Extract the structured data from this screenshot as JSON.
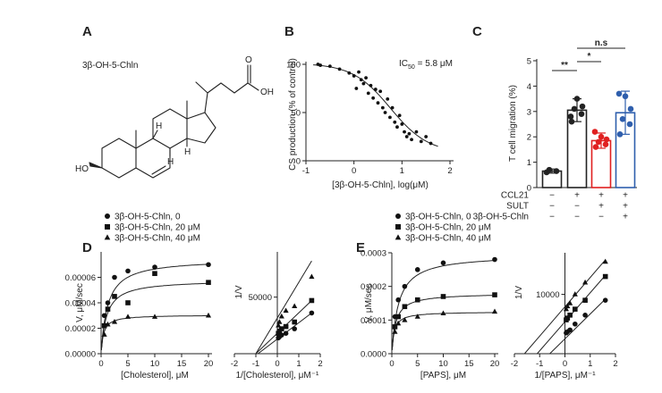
{
  "chart_data": [
    {
      "panel": "A",
      "type": "structure",
      "title": "3β-OH-5-Chln",
      "atom_labels": [
        "HO",
        "OH",
        "O",
        "H",
        "H",
        "H"
      ]
    },
    {
      "panel": "B",
      "type": "scatter",
      "xlabel": "[3β-OH-5-Chln], log(μM)",
      "ylabel": "CS production (% of control)",
      "annotation": "IC50 = 5.8 μM",
      "annotation_prefix": "IC",
      "annotation_sub": "50",
      "annotation_suffix": " = 5.8 μM",
      "xlim": [
        -0.9,
        1.9
      ],
      "ylim": [
        0,
        100
      ],
      "xticks": [
        {
          "v": -1,
          "l": "-1"
        },
        {
          "v": 0,
          "l": "0"
        },
        {
          "v": 1,
          "l": "1"
        },
        {
          "v": 2,
          "l": "2"
        }
      ],
      "yticks": [
        {
          "v": 0,
          "l": "0"
        },
        {
          "v": 50,
          "l": "50"
        },
        {
          "v": 100,
          "l": "100"
        }
      ],
      "points": [
        [
          -0.75,
          100
        ],
        [
          -0.7,
          99
        ],
        [
          -0.5,
          98
        ],
        [
          -0.3,
          95
        ],
        [
          -0.1,
          91
        ],
        [
          0,
          88
        ],
        [
          0.05,
          75
        ],
        [
          0.1,
          92
        ],
        [
          0.15,
          84
        ],
        [
          0.2,
          80
        ],
        [
          0.25,
          86
        ],
        [
          0.3,
          70
        ],
        [
          0.35,
          78
        ],
        [
          0.4,
          65
        ],
        [
          0.45,
          74
        ],
        [
          0.5,
          60
        ],
        [
          0.55,
          72
        ],
        [
          0.6,
          55
        ],
        [
          0.65,
          50
        ],
        [
          0.7,
          64
        ],
        [
          0.75,
          45
        ],
        [
          0.8,
          55
        ],
        [
          0.85,
          40
        ],
        [
          0.9,
          35
        ],
        [
          0.95,
          47
        ],
        [
          1.0,
          38
        ],
        [
          1.05,
          30
        ],
        [
          1.1,
          25
        ],
        [
          1.15,
          28
        ],
        [
          1.2,
          22
        ],
        [
          1.3,
          30
        ],
        [
          1.4,
          20
        ],
        [
          1.5,
          25
        ],
        [
          1.6,
          18
        ]
      ],
      "fit": {
        "model": "four-parameter logistic",
        "top": 101,
        "bottom": 8,
        "logIC50": 0.76,
        "hill": 1.1
      }
    },
    {
      "panel": "C",
      "type": "bar",
      "ylabel": "T cell migration (%)",
      "ylim": [
        0,
        5
      ],
      "yticks": [
        {
          "v": 0,
          "l": "0"
        },
        {
          "v": 1,
          "l": "1"
        },
        {
          "v": 2,
          "l": "2"
        },
        {
          "v": 3,
          "l": "3"
        },
        {
          "v": 4,
          "l": "4"
        },
        {
          "v": 5,
          "l": "5"
        }
      ],
      "groups": [
        {
          "value": 0.65,
          "err": 0.08,
          "color": "#222222",
          "points": [
            0.6,
            0.65,
            0.7
          ]
        },
        {
          "value": 3.05,
          "err": 0.45,
          "color": "#222222",
          "points": [
            2.6,
            2.9,
            3.1,
            3.2,
            3.5,
            2.8
          ]
        },
        {
          "value": 1.85,
          "err": 0.3,
          "color": "#e02020",
          "points": [
            1.6,
            1.7,
            1.8,
            1.9,
            2.0,
            2.2
          ]
        },
        {
          "value": 2.95,
          "err": 0.85,
          "color": "#2f5fad",
          "points": [
            2.1,
            2.5,
            2.7,
            3.1,
            3.6,
            3.7
          ]
        }
      ],
      "condition_labels": [
        "CCL21",
        "SULT",
        "3β-OH-5-Chln"
      ],
      "conditions": [
        [
          "−",
          "+",
          "+",
          "+"
        ],
        [
          "−",
          "−",
          "+",
          "+"
        ],
        [
          "−",
          "−",
          "−",
          "+"
        ]
      ],
      "significance": [
        {
          "from": 0,
          "to": 1,
          "label": "**"
        },
        {
          "from": 1,
          "to": 2,
          "label": "*"
        },
        {
          "from": 1,
          "to": 3,
          "label": "n.s"
        }
      ]
    },
    {
      "panel": "D-left",
      "type": "scatter",
      "xlabel": "[Cholesterol], μM",
      "ylabel": "V, μM/sec",
      "xlim": [
        0,
        20
      ],
      "ylim": [
        0,
        8e-05
      ],
      "xticks": [
        {
          "v": 0,
          "l": "0"
        },
        {
          "v": 5,
          "l": "5"
        },
        {
          "v": 10,
          "l": "10"
        },
        {
          "v": 15,
          "l": "15"
        },
        {
          "v": 20,
          "l": "20"
        }
      ],
      "yticks": [
        {
          "v": 0,
          "l": "0.00000"
        },
        {
          "v": 2e-05,
          "l": "0.00002"
        },
        {
          "v": 4e-05,
          "l": "0.00004"
        },
        {
          "v": 6e-05,
          "l": "0.00006"
        }
      ],
      "legend": [
        "3β-OH-5-Chln, 0",
        "3β-OH-5-Chln, 20 μM",
        "3β-OH-5-Chln, 40 μM"
      ],
      "series": [
        {
          "name": "3β-OH-5-Chln, 0",
          "marker": "circle",
          "vmax": 7.45e-05,
          "km": 1.2,
          "x": [
            0.6,
            1.25,
            2.5,
            5,
            10,
            20
          ],
          "y": [
            3e-05,
            4e-05,
            6e-05,
            6.5e-05,
            6.8e-05,
            7e-05
          ]
        },
        {
          "name": "3β-OH-5-Chln, 20 μM",
          "marker": "square",
          "vmax": 5.8e-05,
          "km": 1.0,
          "x": [
            0.6,
            1.25,
            2.5,
            5,
            10,
            20
          ],
          "y": [
            2.2e-05,
            3.5e-05,
            4.5e-05,
            4e-05,
            6.3e-05,
            5.6e-05
          ]
        },
        {
          "name": "3β-OH-5-Chln, 40 μM",
          "marker": "triangle",
          "vmax": 3.05e-05,
          "km": 0.45,
          "x": [
            0.6,
            1.25,
            2.5,
            5,
            10,
            20
          ],
          "y": [
            1.5e-05,
            2.3e-05,
            2.5e-05,
            2.9e-05,
            2.9e-05,
            3e-05
          ]
        }
      ]
    },
    {
      "panel": "D-right",
      "type": "line",
      "xlabel": "1/[Cholesterol], μM⁻¹",
      "ylabel": "1/V",
      "xlim": [
        -2,
        2
      ],
      "ylim": [
        0,
        90000
      ],
      "xticks": [
        {
          "v": -2,
          "l": "-2"
        },
        {
          "v": -1,
          "l": "-1"
        },
        {
          "v": 0,
          "l": "0"
        },
        {
          "v": 1,
          "l": "1"
        },
        {
          "v": 2,
          "l": "2"
        }
      ],
      "yticks": [
        {
          "v": 50000,
          "l": "50000"
        }
      ],
      "series": [
        {
          "marker": "circle",
          "x": [
            0.05,
            0.1,
            0.2,
            0.4,
            0.8,
            1.6
          ],
          "y": [
            14000,
            15000,
            16500,
            18000,
            22000,
            36000
          ],
          "line": [
            [
              -0.9,
              0
            ],
            [
              1.6,
              36000
            ]
          ]
        },
        {
          "marker": "square",
          "x": [
            0.05,
            0.1,
            0.2,
            0.4,
            0.8,
            1.6
          ],
          "y": [
            18000,
            20000,
            22000,
            24000,
            28000,
            47000
          ],
          "line": [
            [
              -1.0,
              0
            ],
            [
              1.6,
              47000
            ]
          ]
        },
        {
          "marker": "triangle",
          "x": [
            0.05,
            0.1,
            0.2,
            0.4,
            0.8,
            1.6
          ],
          "y": [
            25000,
            28000,
            33000,
            38000,
            42000,
            68000
          ],
          "line": [
            [
              -1.0,
              0
            ],
            [
              1.6,
              82000
            ]
          ]
        }
      ]
    },
    {
      "panel": "E-left",
      "type": "scatter",
      "xlabel": "[PAPS], μM",
      "ylabel": "V, μM/sec",
      "xlim": [
        0,
        20
      ],
      "ylim": [
        0,
        0.0003
      ],
      "xticks": [
        {
          "v": 0,
          "l": "0"
        },
        {
          "v": 5,
          "l": "5"
        },
        {
          "v": 10,
          "l": "10"
        },
        {
          "v": 15,
          "l": "15"
        },
        {
          "v": 20,
          "l": "20"
        }
      ],
      "yticks": [
        {
          "v": 0,
          "l": "0.0000"
        },
        {
          "v": 0.0001,
          "l": "0.0001"
        },
        {
          "v": 0.0002,
          "l": "0.0002"
        },
        {
          "v": 0.0003,
          "l": "0.0003"
        }
      ],
      "legend": [
        "3β-OH-5-Chln, 0",
        "3β-OH-5-Chln, 20 μM",
        "3β-OH-5-Chln, 40 μM"
      ],
      "series": [
        {
          "name": "3β-OH-5-Chln, 0",
          "marker": "circle",
          "vmax": 0.000295,
          "km": 1.3,
          "x": [
            0.6,
            1.25,
            2.5,
            5,
            10,
            20
          ],
          "y": [
            0.00011,
            0.00016,
            0.0002,
            0.00025,
            0.00027,
            0.00028
          ]
        },
        {
          "name": "3β-OH-5-Chln, 20 μM",
          "marker": "square",
          "vmax": 0.00018,
          "km": 0.75,
          "x": [
            0.6,
            1.25,
            2.5,
            5,
            10,
            20
          ],
          "y": [
            8e-05,
            0.00011,
            0.00014,
            0.00016,
            0.00017,
            0.000175
          ]
        },
        {
          "name": "3β-OH-5-Chln, 40 μM",
          "marker": "triangle",
          "vmax": 0.000125,
          "km": 0.45,
          "x": [
            0.6,
            1.25,
            2.5,
            5,
            10,
            20
          ],
          "y": [
            6.5e-05,
            9e-05,
            0.0001,
            0.00011,
            0.00012,
            0.000125
          ]
        }
      ]
    },
    {
      "panel": "E-right",
      "type": "line",
      "xlabel": "1/[PAPS], μM⁻¹",
      "ylabel": "1/V",
      "xlim": [
        -2,
        2
      ],
      "ylim": [
        0,
        17000
      ],
      "xticks": [
        {
          "v": -2,
          "l": "-2"
        },
        {
          "v": -1,
          "l": "-1"
        },
        {
          "v": 0,
          "l": "0"
        },
        {
          "v": 1,
          "l": "1"
        },
        {
          "v": 2,
          "l": "2"
        }
      ],
      "yticks": [
        {
          "v": 10000,
          "l": "10000"
        }
      ],
      "series": [
        {
          "marker": "circle",
          "x": [
            0.05,
            0.1,
            0.2,
            0.4,
            0.8,
            1.6
          ],
          "y": [
            3500,
            3700,
            4000,
            5000,
            6500,
            9000
          ],
          "line": [
            [
              -0.6,
              0
            ],
            [
              1.6,
              9200
            ]
          ]
        },
        {
          "marker": "square",
          "x": [
            0.05,
            0.1,
            0.2,
            0.4,
            0.8,
            1.6
          ],
          "y": [
            5700,
            6000,
            6500,
            7500,
            9000,
            13000
          ],
          "line": [
            [
              -1.1,
              0
            ],
            [
              1.6,
              13200
            ]
          ]
        },
        {
          "marker": "triangle",
          "x": [
            0.05,
            0.1,
            0.2,
            0.4,
            0.8,
            1.6
          ],
          "y": [
            7500,
            8000,
            8500,
            10000,
            12000,
            15500
          ],
          "line": [
            [
              -1.6,
              0
            ],
            [
              1.6,
              15800
            ]
          ]
        }
      ]
    }
  ]
}
